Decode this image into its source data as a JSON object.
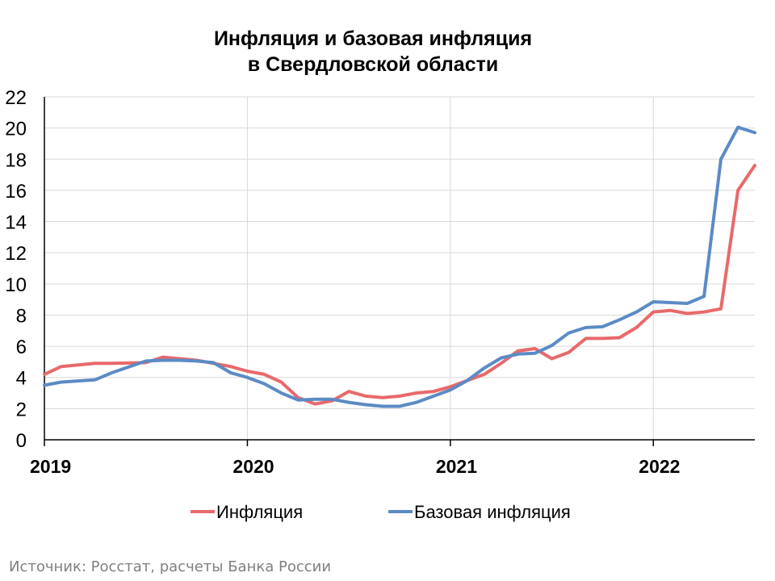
{
  "chart_data": {
    "type": "line",
    "title": [
      "Инфляция и базовая инфляция",
      "в  Свердловской области"
    ],
    "ylim": [
      0,
      22
    ],
    "yticks": [
      0,
      2,
      4,
      6,
      8,
      10,
      12,
      14,
      16,
      18,
      20,
      22
    ],
    "xticks": [
      2019,
      2020,
      2021,
      2022
    ],
    "grid": true,
    "legend_position": "bottom",
    "series": [
      {
        "name": "Инфляция",
        "color": "#e8696b",
        "x": [
          2019.0,
          2019.083,
          2019.25,
          2019.333,
          2019.5,
          2019.583,
          2019.667,
          2019.75,
          2019.833,
          2019.917,
          2020.0,
          2020.083,
          2020.167,
          2020.25,
          2020.333,
          2020.417,
          2020.5,
          2020.583,
          2020.667,
          2020.75,
          2020.833,
          2020.917,
          2021.0,
          2021.083,
          2021.167,
          2021.25,
          2021.333,
          2021.417,
          2021.5,
          2021.583,
          2021.667,
          2021.75,
          2021.833,
          2021.917,
          2022.0,
          2022.083,
          2022.167,
          2022.25,
          2022.333,
          2022.417,
          2022.5
        ],
        "values": [
          4.2,
          4.7,
          4.9,
          4.9,
          4.95,
          5.3,
          5.2,
          5.1,
          4.9,
          4.7,
          4.4,
          4.2,
          3.7,
          2.7,
          2.3,
          2.5,
          3.1,
          2.8,
          2.7,
          2.8,
          3.0,
          3.1,
          3.4,
          3.8,
          4.2,
          4.9,
          5.7,
          5.85,
          5.2,
          5.6,
          6.5,
          6.5,
          6.55,
          7.2,
          8.2,
          8.3,
          8.1,
          8.2,
          8.4,
          16.0,
          17.6
        ]
      },
      {
        "name": "Базовая инфляция",
        "color": "#5b8bc5",
        "x": [
          2019.0,
          2019.083,
          2019.25,
          2019.333,
          2019.5,
          2019.583,
          2019.667,
          2019.75,
          2019.833,
          2019.917,
          2020.0,
          2020.083,
          2020.167,
          2020.25,
          2020.333,
          2020.417,
          2020.5,
          2020.583,
          2020.667,
          2020.75,
          2020.833,
          2020.917,
          2021.0,
          2021.083,
          2021.167,
          2021.25,
          2021.333,
          2021.417,
          2021.5,
          2021.583,
          2021.667,
          2021.75,
          2021.833,
          2021.917,
          2022.0,
          2022.083,
          2022.167,
          2022.25,
          2022.333,
          2022.417,
          2022.5
        ],
        "values": [
          3.5,
          3.7,
          3.85,
          4.3,
          5.05,
          5.1,
          5.1,
          5.05,
          4.95,
          4.3,
          4.0,
          3.6,
          3.0,
          2.55,
          2.6,
          2.6,
          2.4,
          2.25,
          2.15,
          2.15,
          2.4,
          2.8,
          3.2,
          3.8,
          4.6,
          5.25,
          5.5,
          5.55,
          6.05,
          6.85,
          7.2,
          7.25,
          7.7,
          8.2,
          8.85,
          8.8,
          8.75,
          9.2,
          18.0,
          20.05,
          19.7
        ]
      }
    ]
  },
  "source": "Источник: Росстат, расчеты Банка России"
}
